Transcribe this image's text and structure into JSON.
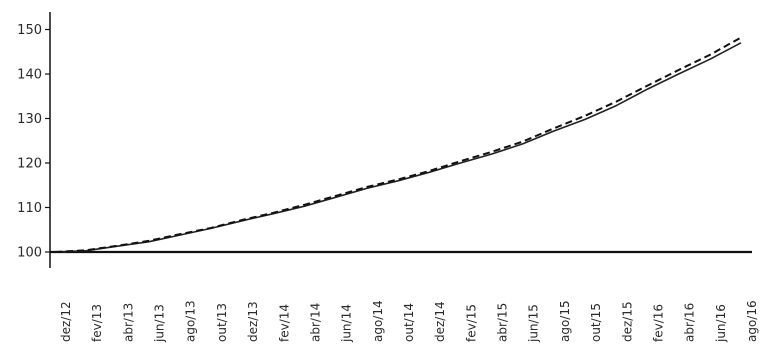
{
  "chart_data": {
    "type": "line",
    "title": "",
    "xlabel": "",
    "ylabel": "",
    "ylim": [
      95,
      152
    ],
    "yticks": [
      100,
      110,
      120,
      130,
      140,
      150
    ],
    "baseline": 100,
    "grid": false,
    "legend": "none",
    "x": [
      "dez/12",
      "fev/13",
      "abr/13",
      "jun/13",
      "ago/13",
      "out/13",
      "dez/13",
      "fev/14",
      "abr/14",
      "jun/14",
      "ago/14",
      "out/14",
      "dez/14",
      "fev/15",
      "abr/15",
      "jun/15",
      "ago/15",
      "out/15",
      "dez/15",
      "fev/16",
      "abr/16",
      "jun/16",
      "ago/16"
    ],
    "xtick_labels": [
      "dez/12",
      "fev/13",
      "abr/13",
      "jun/13",
      "ago/13",
      "out/13",
      "dez/13",
      "fev/14",
      "abr/14",
      "jun/14",
      "ago/14",
      "out/14",
      "dez/14",
      "fev/15",
      "abr/15",
      "jun/15",
      "ago/15",
      "out/15",
      "dez/15",
      "fev/16",
      "abr/16",
      "jun/16",
      "ago/16"
    ],
    "series": [
      {
        "style": "solid",
        "color": "#222222",
        "values": [
          100.0,
          100.3,
          101.3,
          102.3,
          103.8,
          105.3,
          107.0,
          108.6,
          110.3,
          112.3,
          114.3,
          116.0,
          117.9,
          120.0,
          122.0,
          124.3,
          127.2,
          129.8,
          132.9,
          136.6,
          140.0,
          143.3,
          147.0
        ]
      },
      {
        "style": "dashed",
        "color": "#111111",
        "values": [
          100.0,
          100.4,
          101.4,
          102.5,
          104.0,
          105.4,
          107.2,
          108.8,
          110.6,
          112.6,
          114.6,
          116.3,
          118.2,
          120.4,
          122.5,
          124.8,
          127.8,
          130.6,
          133.8,
          137.4,
          140.9,
          144.3,
          148.2
        ]
      }
    ]
  }
}
